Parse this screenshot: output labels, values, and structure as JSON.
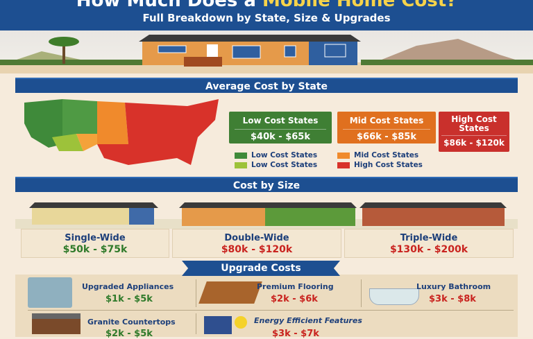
{
  "header": {
    "title_main": "How Much Does a ",
    "title_accent": "Mobile Home Cost?",
    "subtitle": "Full Breakdown by State, Size & Upgrades"
  },
  "state_section": {
    "title": "Average Cost by State",
    "boxes": [
      {
        "label": "Low Cost States",
        "range": "$40k - $65k",
        "color": "#3f7f34"
      },
      {
        "label": "Mid Cost States",
        "range": "$66k - $85k",
        "color": "#e0701f"
      },
      {
        "label": "High Cost States",
        "range": "$86k - $120k",
        "color": "#c9302c"
      }
    ],
    "legend": [
      {
        "label": "Low Cost States",
        "color": "#3f8a3a"
      },
      {
        "label": "Mid Cost States",
        "color": "#f08a2c"
      },
      {
        "label": "Low Cost States",
        "color": "#9dc23a"
      },
      {
        "label": "High Cost States",
        "color": "#d8322a"
      }
    ]
  },
  "size_section": {
    "title": "Cost by Size",
    "items": [
      {
        "name": "Single-Wide",
        "price": "$50k - $75k",
        "color": "#2f7a2a"
      },
      {
        "name": "Double-Wide",
        "price": "$80k - $120k",
        "color": "#c9231f"
      },
      {
        "name": "Triple-Wide",
        "price": "$130k - $200k",
        "color": "#c9231f"
      }
    ]
  },
  "upgrade_section": {
    "title": "Upgrade Costs",
    "items": [
      {
        "name": "Upgraded Appliances",
        "price": "$1k - $5k",
        "color": "#2f7a2a"
      },
      {
        "name": "Premium Flooring",
        "price": "$2k - $6k",
        "color": "#c9231f"
      },
      {
        "name": "Luxury Bathroom",
        "price": "$3k - $8k",
        "color": "#c9231f"
      },
      {
        "name": "Granite Countertops",
        "price": "$2k - $5k",
        "color": "#2f7a2a"
      },
      {
        "name": "Energy Efficient Features",
        "price": "$3k - $7k",
        "color": "#c9231f"
      }
    ]
  }
}
